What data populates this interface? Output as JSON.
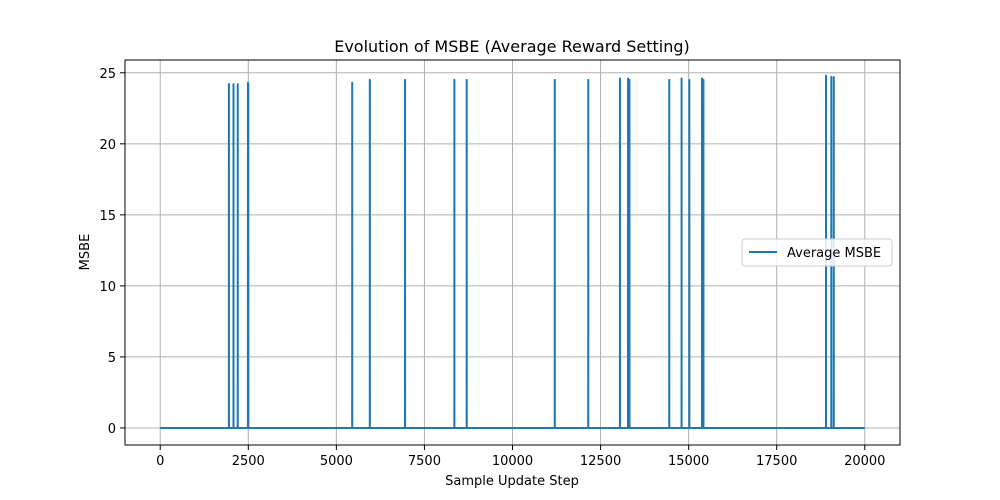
{
  "chart_data": {
    "type": "line",
    "title": "Evolution of MSBE (Average Reward Setting)",
    "xlabel": "Sample Update Step",
    "ylabel": "MSBE",
    "xlim": [
      -1000,
      21000
    ],
    "ylim": [
      -1.2,
      25.9
    ],
    "xticks": [
      0,
      2500,
      5000,
      7500,
      10000,
      12500,
      15000,
      17500,
      20000
    ],
    "yticks": [
      0,
      5,
      10,
      15,
      20,
      25
    ],
    "grid": true,
    "legend_position": "center-right",
    "series": [
      {
        "name": "Average MSBE",
        "color": "#1f77b4",
        "baseline": 0,
        "x_range": [
          0,
          20000
        ],
        "spikes": [
          {
            "x": 1950,
            "y": 24.2
          },
          {
            "x": 2080,
            "y": 24.2
          },
          {
            "x": 2200,
            "y": 24.2
          },
          {
            "x": 2490,
            "y": 24.3
          },
          {
            "x": 2500,
            "y": 24.2
          },
          {
            "x": 5450,
            "y": 24.3
          },
          {
            "x": 5950,
            "y": 24.5
          },
          {
            "x": 6950,
            "y": 24.5
          },
          {
            "x": 8350,
            "y": 24.5
          },
          {
            "x": 8700,
            "y": 24.5
          },
          {
            "x": 11200,
            "y": 24.5
          },
          {
            "x": 12150,
            "y": 24.5
          },
          {
            "x": 13050,
            "y": 24.6
          },
          {
            "x": 13280,
            "y": 24.6
          },
          {
            "x": 13320,
            "y": 24.5
          },
          {
            "x": 14450,
            "y": 24.5
          },
          {
            "x": 14800,
            "y": 24.6
          },
          {
            "x": 15020,
            "y": 24.5
          },
          {
            "x": 15380,
            "y": 24.6
          },
          {
            "x": 15420,
            "y": 24.5
          },
          {
            "x": 18900,
            "y": 24.8
          },
          {
            "x": 19050,
            "y": 24.7
          },
          {
            "x": 19120,
            "y": 24.7
          }
        ]
      }
    ]
  }
}
